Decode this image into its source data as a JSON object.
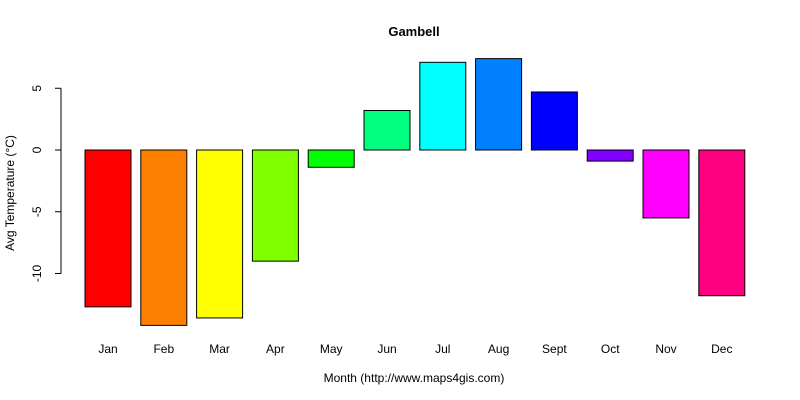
{
  "chart_data": {
    "type": "bar",
    "title": "Gambell",
    "xlabel": "Month (http://www.maps4gis.com)",
    "ylabel": "Avg Temperature (°C)",
    "categories": [
      "Jan",
      "Feb",
      "Mar",
      "Apr",
      "May",
      "Jun",
      "Jul",
      "Aug",
      "Sept",
      "Oct",
      "Nov",
      "Dec"
    ],
    "values": [
      -12.7,
      -14.2,
      -13.6,
      -9.0,
      -1.4,
      3.2,
      7.1,
      7.4,
      4.7,
      -0.9,
      -5.5,
      -11.8
    ],
    "colors": [
      "#ff0000",
      "#ff8000",
      "#ffff00",
      "#80ff00",
      "#00ff00",
      "#00ff80",
      "#00ffff",
      "#0080ff",
      "#0000ff",
      "#8000ff",
      "#ff00ff",
      "#ff0080"
    ],
    "yticks": [
      5,
      0,
      -5,
      -10
    ],
    "ylim": [
      -14.5,
      8
    ],
    "grid": false,
    "legend": "none"
  }
}
